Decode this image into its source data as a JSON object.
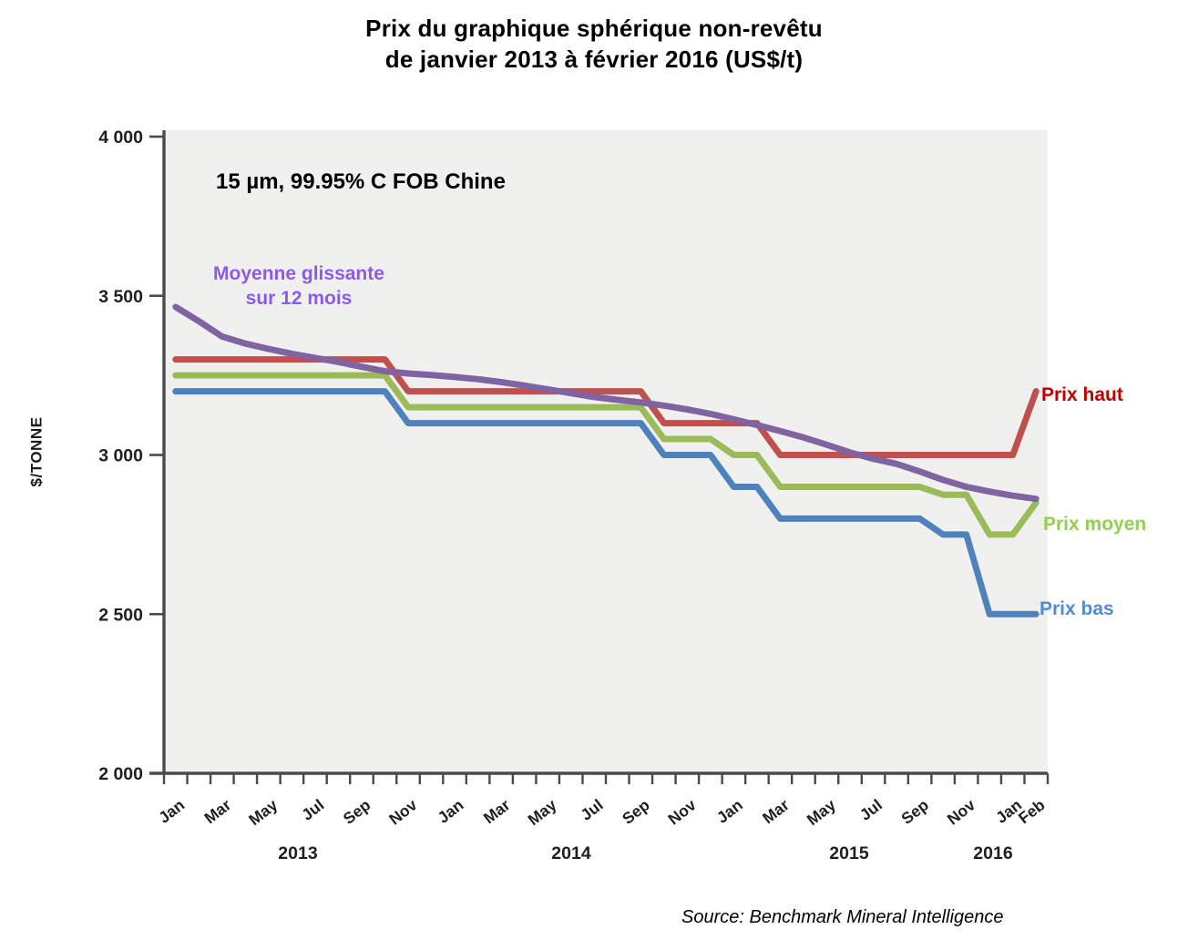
{
  "title": {
    "line1": "Prix du graphique sphérique non-revêtu",
    "line2": "de janvier 2013 à février 2016 (US$/t)"
  },
  "annotation": "15 µm, 99.95% C FOB Chine",
  "rolling_label": {
    "line1": "Moyenne glissante",
    "line2": "sur 12 mois"
  },
  "y_axis_title": "$/TONNE",
  "source": "Source: Benchmark Mineral Intelligence",
  "legend": {
    "high": "Prix haut",
    "mid": "Prix moyen",
    "low": "Prix bas"
  },
  "colors": {
    "prix_haut_line": "#C0504D",
    "prix_moyen_line": "#9BBB59",
    "prix_bas_line": "#4F81BD",
    "moyenne_line": "#8064A2",
    "prix_haut_label": "#C00000",
    "prix_moyen_label": "#92D050",
    "prix_bas_label": "#548BD4",
    "moyenne_label": "#8B5BE8",
    "plot_bg": "#F0F0EF",
    "axis": "#4A4A4A",
    "tick_text": "#1F1F1F"
  },
  "chart_data": {
    "type": "line",
    "title": "Prix du graphique sphérique non-revêtu de janvier 2013 à février 2016 (US$/t)",
    "xlabel": "",
    "ylabel": "$/TONNE",
    "ylim": [
      2000,
      4000
    ],
    "grid": false,
    "legend_position": "right-inline",
    "categories": [
      "Jan 2013",
      "Feb 2013",
      "Mar 2013",
      "Apr 2013",
      "May 2013",
      "Jun 2013",
      "Jul 2013",
      "Aug 2013",
      "Sep 2013",
      "Oct 2013",
      "Nov 2013",
      "Dec 2013",
      "Jan 2014",
      "Feb 2014",
      "Mar 2014",
      "Apr 2014",
      "May 2014",
      "Jun 2014",
      "Jul 2014",
      "Aug 2014",
      "Sep 2014",
      "Oct 2014",
      "Nov 2014",
      "Dec 2014",
      "Jan 2015",
      "Feb 2015",
      "Mar 2015",
      "Apr 2015",
      "May 2015",
      "Jun 2015",
      "Jul 2015",
      "Aug 2015",
      "Sep 2015",
      "Oct 2015",
      "Nov 2015",
      "Dec 2015",
      "Jan 2016",
      "Feb 2016"
    ],
    "x_tick_indices": [
      0,
      2,
      4,
      6,
      8,
      10,
      12,
      14,
      16,
      18,
      20,
      22,
      24,
      26,
      28,
      30,
      32,
      34,
      36,
      37
    ],
    "years": [
      "2013",
      "2014",
      "2015",
      "2016"
    ],
    "y_ticks": [
      {
        "value": 4000,
        "label": "4 000"
      },
      {
        "value": 3500,
        "label": "3 500"
      },
      {
        "value": 3000,
        "label": "3 000"
      },
      {
        "value": 2500,
        "label": "2 500"
      },
      {
        "value": 2000,
        "label": "2 000"
      }
    ],
    "series": [
      {
        "key": "prix-haut",
        "name": "Prix haut",
        "color": "#C0504D",
        "values": [
          3300,
          3300,
          3300,
          3300,
          3300,
          3300,
          3300,
          3300,
          3300,
          3300,
          3200,
          3200,
          3200,
          3200,
          3200,
          3200,
          3200,
          3200,
          3200,
          3200,
          3200,
          3100,
          3100,
          3100,
          3100,
          3100,
          3000,
          3000,
          3000,
          3000,
          3000,
          3000,
          3000,
          3000,
          3000,
          3000,
          3000,
          3200
        ]
      },
      {
        "key": "prix-moyen",
        "name": "Prix moyen",
        "color": "#9BBB59",
        "values": [
          3250,
          3250,
          3250,
          3250,
          3250,
          3250,
          3250,
          3250,
          3250,
          3250,
          3150,
          3150,
          3150,
          3150,
          3150,
          3150,
          3150,
          3150,
          3150,
          3150,
          3150,
          3050,
          3050,
          3050,
          3000,
          3000,
          2900,
          2900,
          2900,
          2900,
          2900,
          2900,
          2900,
          2875,
          2875,
          2750,
          2750,
          2850
        ]
      },
      {
        "key": "prix-bas",
        "name": "Prix bas",
        "color": "#4F81BD",
        "values": [
          3200,
          3200,
          3200,
          3200,
          3200,
          3200,
          3200,
          3200,
          3200,
          3200,
          3100,
          3100,
          3100,
          3100,
          3100,
          3100,
          3100,
          3100,
          3100,
          3100,
          3100,
          3000,
          3000,
          3000,
          2900,
          2900,
          2800,
          2800,
          2800,
          2800,
          2800,
          2800,
          2800,
          2750,
          2750,
          2500,
          2500,
          2500
        ]
      },
      {
        "key": "moyenne-glissante",
        "name": "Moyenne glissante sur 12 mois",
        "color": "#8064A2",
        "values": [
          3465,
          3420,
          3372,
          3350,
          3333,
          3318,
          3305,
          3292,
          3277,
          3263,
          3256,
          3251,
          3245,
          3238,
          3229,
          3218,
          3206,
          3194,
          3182,
          3173,
          3165,
          3155,
          3143,
          3129,
          3112,
          3094,
          3075,
          3055,
          3032,
          3008,
          2988,
          2972,
          2948,
          2922,
          2900,
          2885,
          2872,
          2862
        ]
      }
    ]
  }
}
